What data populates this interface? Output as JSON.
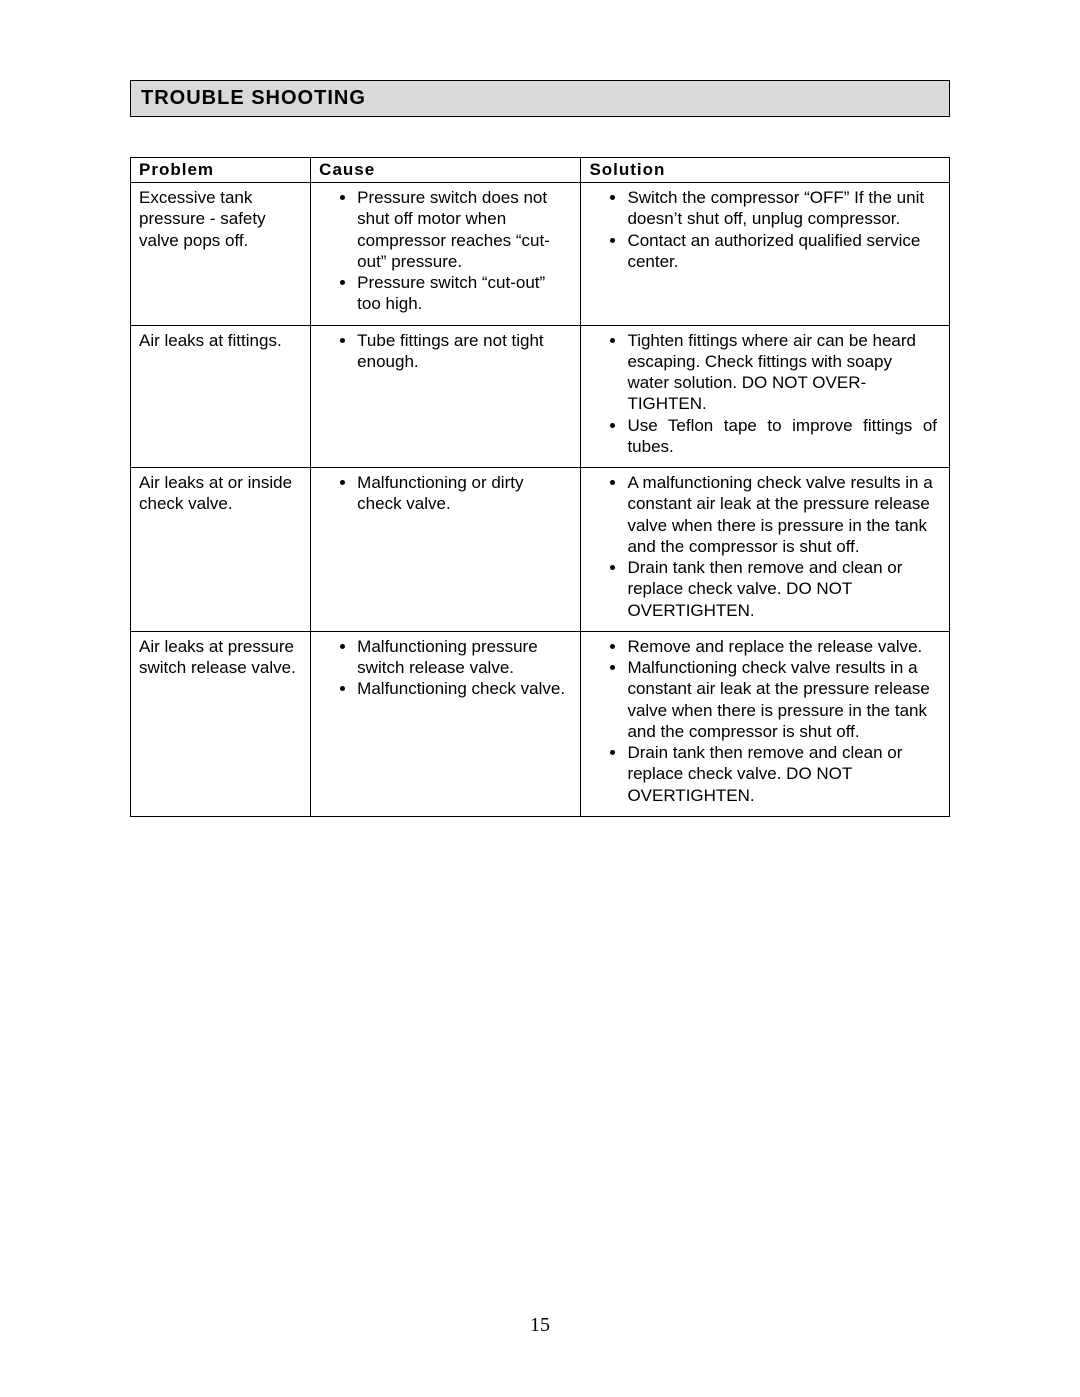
{
  "section_title": "TROUBLE SHOOTING",
  "page_number": "15",
  "colors": {
    "header_bg": "#d9d9d9",
    "border": "#000000",
    "text": "#000000",
    "page_bg": "#ffffff"
  },
  "table": {
    "headers": {
      "problem": "Problem",
      "cause": "Cause",
      "solution": "Solution"
    },
    "rows": [
      {
        "problem": "Excessive tank pressure - safety valve pops off.",
        "causes": [
          "Pressure switch does not shut off motor when compressor reaches “cut-out” pressure.",
          "Pressure switch “cut-out” too high."
        ],
        "solutions": [
          "Switch the compressor “OFF” If the unit doesn’t shut off, unplug compressor.",
          "Contact an authorized qualified service center."
        ]
      },
      {
        "problem": "Air leaks at fittings.",
        "causes": [
          "Tube fittings are not tight enough."
        ],
        "solutions": [
          "Tighten fittings where air can be heard escaping. Check fittings with soapy water solution. DO NOT OVER-TIGHTEN.",
          "Use Teflon tape to improve fittings of tubes."
        ]
      },
      {
        "problem": "Air leaks at or inside\ncheck valve.",
        "causes": [
          "Malfunctioning or dirty check valve."
        ],
        "solutions": [
          "A malfunctioning check valve results in a constant air leak at the pressure release valve when there is pressure in the tank and the compressor is shut off.",
          "Drain tank then remove and clean or replace check valve. DO NOT OVERTIGHTEN."
        ]
      },
      {
        "problem": "Air leaks at pressure switch release valve.",
        "causes": [
          "Malfunctioning pressure switch release valve.",
          "Malfunctioning check valve."
        ],
        "solutions": [
          "Remove and replace the release valve.",
          "Malfunctioning check valve results in a constant air leak at the pressure release valve when there is pressure in the tank and the compressor is shut off.",
          "Drain tank then remove and clean or replace check valve. DO NOT OVERTIGHTEN."
        ]
      }
    ]
  }
}
